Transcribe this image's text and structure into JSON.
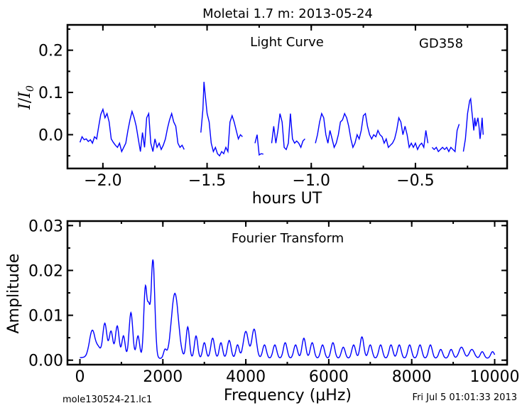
{
  "title": "Moletai 1.7 m:  2013-05-24",
  "footer_left": "mole130524-21.lc1",
  "footer_right": "Fri Jul  5 01:01:33 2013",
  "line_color": "#0000ff",
  "chart_data": [
    {
      "type": "line",
      "annotation": "Light Curve",
      "star": "GD358",
      "xlabel": "hours UT",
      "ylabel_main": "I",
      "ylabel_den": "I",
      "ylabel_sub": "0",
      "xlim": [
        -2.17,
        -0.06
      ],
      "ylim": [
        -0.08,
        0.26
      ],
      "xticks": [
        -2.0,
        -1.5,
        -1.0,
        -0.5
      ],
      "xtick_labels": [
        "−2.0",
        "−1.5",
        "−1.0",
        "−0.5"
      ],
      "yticks": [
        0.0,
        0.1,
        0.2
      ],
      "ytick_labels": [
        "0.0",
        "0.1",
        "0.2"
      ],
      "segments": [
        [
          [
            -2.11,
            -0.018
          ],
          [
            -2.1,
            -0.005
          ],
          [
            -2.09,
            -0.012
          ],
          [
            -2.08,
            -0.01
          ],
          [
            -2.07,
            -0.016
          ],
          [
            -2.06,
            -0.012
          ],
          [
            -2.05,
            -0.02
          ],
          [
            -2.04,
            -0.005
          ],
          [
            -2.03,
            -0.01
          ],
          [
            -2.02,
            0.02
          ],
          [
            -2.01,
            0.048
          ],
          [
            -2.0,
            0.06
          ],
          [
            -1.99,
            0.04
          ],
          [
            -1.98,
            0.05
          ],
          [
            -1.97,
            0.03
          ],
          [
            -1.96,
            -0.01
          ],
          [
            -1.95,
            -0.018
          ],
          [
            -1.94,
            -0.025
          ],
          [
            -1.93,
            -0.03
          ],
          [
            -1.92,
            -0.02
          ],
          [
            -1.91,
            -0.04
          ],
          [
            -1.9,
            -0.03
          ],
          [
            -1.89,
            -0.02
          ],
          [
            -1.88,
            0.01
          ],
          [
            -1.87,
            0.035
          ],
          [
            -1.86,
            0.055
          ],
          [
            -1.85,
            0.04
          ],
          [
            -1.84,
            0.02
          ],
          [
            -1.83,
            -0.01
          ],
          [
            -1.82,
            -0.04
          ],
          [
            -1.81,
            0.005
          ],
          [
            -1.8,
            -0.03
          ],
          [
            -1.79,
            0.04
          ],
          [
            -1.78,
            0.05
          ],
          [
            -1.77,
            -0.02
          ],
          [
            -1.76,
            -0.04
          ],
          [
            -1.75,
            -0.01
          ],
          [
            -1.74,
            -0.03
          ],
          [
            -1.73,
            -0.02
          ],
          [
            -1.72,
            -0.035
          ],
          [
            -1.71,
            -0.025
          ],
          [
            -1.7,
            -0.01
          ],
          [
            -1.69,
            0.015
          ],
          [
            -1.68,
            0.035
          ],
          [
            -1.67,
            0.05
          ],
          [
            -1.66,
            0.03
          ],
          [
            -1.65,
            0.02
          ],
          [
            -1.64,
            -0.02
          ],
          [
            -1.63,
            -0.03
          ],
          [
            -1.62,
            -0.025
          ],
          [
            -1.61,
            -0.035
          ]
        ],
        [
          [
            -1.53,
            0.005
          ],
          [
            -1.52,
            0.06
          ],
          [
            -1.515,
            0.125
          ],
          [
            -1.51,
            0.1
          ],
          [
            -1.5,
            0.05
          ],
          [
            -1.49,
            0.03
          ],
          [
            -1.48,
            -0.02
          ],
          [
            -1.47,
            -0.04
          ],
          [
            -1.46,
            -0.03
          ],
          [
            -1.45,
            -0.045
          ],
          [
            -1.44,
            -0.05
          ],
          [
            -1.43,
            -0.04
          ],
          [
            -1.42,
            -0.045
          ],
          [
            -1.41,
            -0.03
          ],
          [
            -1.4,
            -0.04
          ],
          [
            -1.39,
            0.03
          ],
          [
            -1.38,
            0.045
          ],
          [
            -1.37,
            0.03
          ],
          [
            -1.36,
            0.01
          ],
          [
            -1.35,
            -0.01
          ],
          [
            -1.34,
            0.0
          ],
          [
            -1.33,
            -0.005
          ]
        ],
        [
          [
            -1.27,
            -0.02
          ],
          [
            -1.26,
            0.0
          ],
          [
            -1.25,
            -0.048
          ],
          [
            -1.24,
            -0.045
          ],
          [
            -1.23,
            -0.046
          ]
        ],
        [
          [
            -1.19,
            -0.02
          ],
          [
            -1.18,
            0.02
          ],
          [
            -1.17,
            -0.02
          ],
          [
            -1.16,
            0.01
          ],
          [
            -1.15,
            0.05
          ],
          [
            -1.14,
            0.03
          ],
          [
            -1.13,
            -0.03
          ],
          [
            -1.12,
            -0.035
          ],
          [
            -1.11,
            -0.02
          ],
          [
            -1.1,
            0.05
          ],
          [
            -1.09,
            -0.01
          ],
          [
            -1.08,
            -0.02
          ],
          [
            -1.07,
            -0.015
          ],
          [
            -1.06,
            -0.02
          ],
          [
            -1.05,
            -0.03
          ],
          [
            -1.04,
            -0.015
          ],
          [
            -1.03,
            -0.01
          ]
        ],
        [
          [
            -0.98,
            -0.02
          ],
          [
            -0.97,
            0.0
          ],
          [
            -0.96,
            0.03
          ],
          [
            -0.95,
            0.05
          ],
          [
            -0.94,
            0.04
          ],
          [
            -0.93,
            0.0
          ],
          [
            -0.92,
            -0.02
          ],
          [
            -0.91,
            0.01
          ],
          [
            -0.9,
            -0.01
          ],
          [
            -0.89,
            -0.03
          ],
          [
            -0.88,
            -0.02
          ],
          [
            -0.87,
            0.0
          ],
          [
            -0.86,
            0.03
          ],
          [
            -0.85,
            0.035
          ],
          [
            -0.84,
            0.05
          ],
          [
            -0.83,
            0.04
          ],
          [
            -0.82,
            0.02
          ],
          [
            -0.81,
            -0.01
          ],
          [
            -0.8,
            -0.03
          ],
          [
            -0.79,
            -0.02
          ],
          [
            -0.78,
            0.0
          ],
          [
            -0.77,
            -0.01
          ],
          [
            -0.76,
            0.01
          ],
          [
            -0.75,
            0.045
          ],
          [
            -0.74,
            0.05
          ],
          [
            -0.73,
            0.02
          ],
          [
            -0.72,
            0.0
          ],
          [
            -0.71,
            -0.01
          ],
          [
            -0.7,
            0.0
          ],
          [
            -0.69,
            -0.005
          ],
          [
            -0.68,
            0.01
          ],
          [
            -0.67,
            0.0
          ],
          [
            -0.66,
            -0.005
          ],
          [
            -0.65,
            -0.02
          ],
          [
            -0.64,
            -0.01
          ],
          [
            -0.63,
            -0.03
          ],
          [
            -0.62,
            -0.025
          ],
          [
            -0.61,
            -0.02
          ],
          [
            -0.6,
            -0.01
          ],
          [
            -0.59,
            0.01
          ],
          [
            -0.58,
            0.04
          ],
          [
            -0.57,
            0.03
          ],
          [
            -0.56,
            0.0
          ],
          [
            -0.55,
            0.02
          ],
          [
            -0.54,
            0.0
          ],
          [
            -0.53,
            -0.03
          ],
          [
            -0.52,
            -0.02
          ],
          [
            -0.51,
            -0.03
          ],
          [
            -0.5,
            -0.02
          ],
          [
            -0.49,
            -0.035
          ],
          [
            -0.48,
            -0.025
          ],
          [
            -0.47,
            -0.02
          ],
          [
            -0.46,
            -0.03
          ],
          [
            -0.45,
            0.01
          ],
          [
            -0.44,
            -0.02
          ]
        ],
        [
          [
            -0.42,
            -0.03
          ],
          [
            -0.41,
            -0.035
          ],
          [
            -0.4,
            -0.03
          ],
          [
            -0.39,
            -0.04
          ],
          [
            -0.38,
            -0.035
          ],
          [
            -0.37,
            -0.03
          ],
          [
            -0.36,
            -0.035
          ],
          [
            -0.35,
            -0.03
          ],
          [
            -0.34,
            -0.04
          ],
          [
            -0.33,
            -0.03
          ],
          [
            -0.32,
            -0.035
          ],
          [
            -0.31,
            -0.04
          ],
          [
            -0.3,
            0.01
          ],
          [
            -0.29,
            0.025
          ]
        ],
        [
          [
            -0.27,
            -0.04
          ],
          [
            -0.26,
            -0.01
          ],
          [
            -0.25,
            0.05
          ],
          [
            -0.24,
            0.08
          ],
          [
            -0.235,
            0.085
          ],
          [
            -0.23,
            0.06
          ],
          [
            -0.22,
            0.01
          ],
          [
            -0.215,
            0.04
          ],
          [
            -0.21,
            0.02
          ],
          [
            -0.2,
            0.04
          ],
          [
            -0.195,
            0.02
          ],
          [
            -0.19,
            -0.01
          ],
          [
            -0.185,
            0.01
          ],
          [
            -0.18,
            0.04
          ],
          [
            -0.175,
            0.0
          ]
        ]
      ]
    },
    {
      "type": "line",
      "annotation": "Fourier Transform",
      "xlabel": "Frequency (μHz)",
      "ylabel": "Amplitude",
      "xlim": [
        -300,
        10300
      ],
      "ylim": [
        -0.001,
        0.031
      ],
      "xticks": [
        0,
        2000,
        4000,
        6000,
        8000,
        10000
      ],
      "xtick_labels": [
        "0",
        "2000",
        "4000",
        "6000",
        "8000",
        "10000"
      ],
      "yticks": [
        0.0,
        0.01,
        0.02,
        0.03
      ],
      "ytick_labels": [
        "0.00",
        "0.01",
        "0.02",
        "0.03"
      ],
      "peaks": [
        [
          100,
          0.0002,
          150
        ],
        [
          300,
          0.0062,
          70
        ],
        [
          450,
          0.002,
          50
        ],
        [
          600,
          0.0078,
          50
        ],
        [
          750,
          0.006,
          45
        ],
        [
          900,
          0.0072,
          45
        ],
        [
          1050,
          0.005,
          40
        ],
        [
          1230,
          0.0102,
          45
        ],
        [
          1400,
          0.005,
          40
        ],
        [
          1580,
          0.016,
          40
        ],
        [
          1660,
          0.0085,
          30
        ],
        [
          1760,
          0.022,
          45
        ],
        [
          2050,
          0.0018,
          35
        ],
        [
          2290,
          0.0145,
          85
        ],
        [
          2600,
          0.007,
          40
        ],
        [
          2800,
          0.005,
          40
        ],
        [
          3000,
          0.0035,
          40
        ],
        [
          3200,
          0.0045,
          45
        ],
        [
          3400,
          0.0035,
          40
        ],
        [
          3600,
          0.004,
          45
        ],
        [
          3800,
          0.003,
          40
        ],
        [
          4000,
          0.006,
          60
        ],
        [
          4200,
          0.0065,
          55
        ],
        [
          4450,
          0.003,
          45
        ],
        [
          4700,
          0.003,
          45
        ],
        [
          4950,
          0.0035,
          45
        ],
        [
          5200,
          0.003,
          45
        ],
        [
          5400,
          0.0045,
          45
        ],
        [
          5600,
          0.0035,
          45
        ],
        [
          5850,
          0.003,
          45
        ],
        [
          6100,
          0.0035,
          45
        ],
        [
          6350,
          0.0025,
          45
        ],
        [
          6600,
          0.003,
          45
        ],
        [
          6800,
          0.0048,
          45
        ],
        [
          7000,
          0.003,
          45
        ],
        [
          7250,
          0.003,
          45
        ],
        [
          7500,
          0.003,
          45
        ],
        [
          7700,
          0.003,
          45
        ],
        [
          7950,
          0.003,
          45
        ],
        [
          8200,
          0.003,
          45
        ],
        [
          8450,
          0.003,
          45
        ],
        [
          8700,
          0.002,
          45
        ],
        [
          8950,
          0.002,
          45
        ],
        [
          9200,
          0.0025,
          60
        ],
        [
          9450,
          0.002,
          60
        ],
        [
          9700,
          0.0015,
          45
        ],
        [
          9950,
          0.0015,
          45
        ]
      ]
    }
  ]
}
